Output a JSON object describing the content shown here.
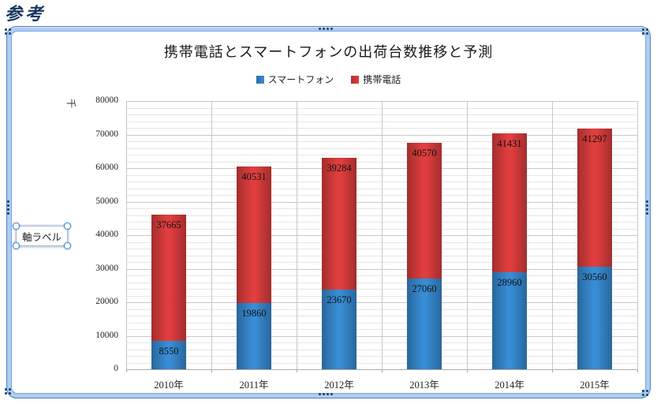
{
  "page": {
    "heading": "参考"
  },
  "chart": {
    "axis_textbox_label": "軸ラベル",
    "frame_color": "#4F81BD"
  },
  "chart_data": {
    "type": "bar",
    "stacked": true,
    "title": "携帯電話とスマートフォンの出荷台数推移と予測",
    "categories": [
      "2010年",
      "2011年",
      "2012年",
      "2013年",
      "2014年",
      "2015年"
    ],
    "series": [
      {
        "name": "スマートフォン",
        "color": "#3380C2",
        "values": [
          8550,
          19860,
          23670,
          27060,
          28960,
          30560
        ]
      },
      {
        "name": "携帯電話",
        "color": "#CC3838",
        "values": [
          37665,
          40531,
          39284,
          40570,
          41431,
          41297
        ]
      }
    ],
    "ylim": [
      0,
      80000
    ],
    "ytick_step": 10000,
    "yminor_step": 2000,
    "ytick_labels": [
      "0",
      "10000",
      "20000",
      "30000",
      "40000",
      "50000",
      "60000",
      "70000",
      "80000"
    ],
    "y_unit": "千",
    "legend_position": "top",
    "grid": true,
    "data_labels": "inside-end"
  }
}
